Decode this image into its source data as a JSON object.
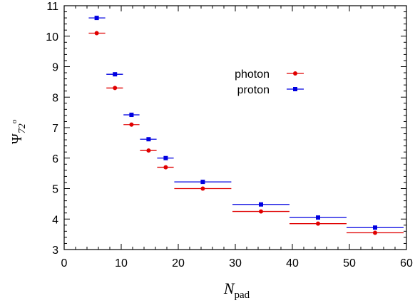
{
  "chart_data": {
    "type": "scatter",
    "title": "",
    "xlabel": "N",
    "xlabel_sub": "pad",
    "ylabel": "Ψ",
    "ylabel_sub": "72",
    "ylabel_sup": "o",
    "xlim": [
      0,
      60
    ],
    "ylim": [
      3,
      11
    ],
    "x_ticks": [
      0,
      10,
      20,
      30,
      40,
      50,
      60
    ],
    "x_tick_labels": [
      "0",
      "10",
      "20",
      "30",
      "40",
      "50",
      "60"
    ],
    "y_ticks": [
      3,
      4,
      5,
      6,
      7,
      8,
      9,
      10,
      11
    ],
    "y_tick_labels": [
      "3",
      "4",
      "5",
      "6",
      "7",
      "8",
      "9",
      "10",
      "11"
    ],
    "grid": false,
    "legend_position": "top-center",
    "series": [
      {
        "name": "photon",
        "color": "#e00000",
        "marker": "circle",
        "points": [
          {
            "x": 5.7,
            "xlo": 4.3,
            "xhi": 7.2,
            "y": 10.1
          },
          {
            "x": 8.9,
            "xlo": 7.4,
            "xhi": 10.3,
            "y": 8.3
          },
          {
            "x": 11.8,
            "xlo": 10.4,
            "xhi": 13.2,
            "y": 7.1
          },
          {
            "x": 14.8,
            "xlo": 13.3,
            "xhi": 16.2,
            "y": 6.25
          },
          {
            "x": 17.8,
            "xlo": 16.3,
            "xhi": 19.2,
            "y": 5.7
          },
          {
            "x": 24.3,
            "xlo": 19.3,
            "xhi": 29.3,
            "y": 5.0
          },
          {
            "x": 34.5,
            "xlo": 29.5,
            "xhi": 39.5,
            "y": 4.25
          },
          {
            "x": 44.5,
            "xlo": 39.5,
            "xhi": 49.5,
            "y": 3.85
          },
          {
            "x": 54.5,
            "xlo": 49.5,
            "xhi": 59.5,
            "y": 3.55
          }
        ]
      },
      {
        "name": "proton",
        "color": "#0000e0",
        "marker": "square",
        "points": [
          {
            "x": 5.7,
            "xlo": 4.3,
            "xhi": 7.2,
            "y": 10.6
          },
          {
            "x": 8.9,
            "xlo": 7.4,
            "xhi": 10.3,
            "y": 8.75
          },
          {
            "x": 11.8,
            "xlo": 10.4,
            "xhi": 13.2,
            "y": 7.42
          },
          {
            "x": 14.8,
            "xlo": 13.3,
            "xhi": 16.2,
            "y": 6.62
          },
          {
            "x": 17.8,
            "xlo": 16.3,
            "xhi": 19.2,
            "y": 6.0
          },
          {
            "x": 24.3,
            "xlo": 19.3,
            "xhi": 29.3,
            "y": 5.22
          },
          {
            "x": 34.5,
            "xlo": 29.5,
            "xhi": 39.5,
            "y": 4.48
          },
          {
            "x": 44.5,
            "xlo": 39.5,
            "xhi": 49.5,
            "y": 4.05
          },
          {
            "x": 54.5,
            "xlo": 49.5,
            "xhi": 59.5,
            "y": 3.72
          }
        ]
      }
    ]
  }
}
